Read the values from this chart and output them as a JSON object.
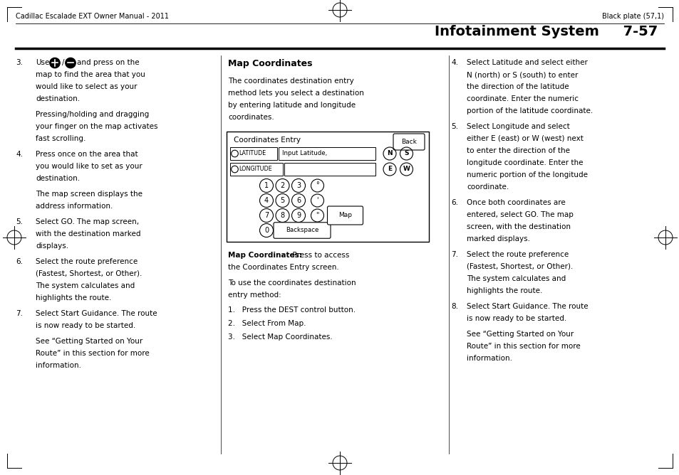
{
  "page_width": 9.54,
  "page_height": 6.68,
  "bg_color": "#ffffff",
  "header_left": "Cadillac Escalade EXT Owner Manual - 2011",
  "header_right": "Black plate (57,1)",
  "section_title": "Infotainment System",
  "section_num": "7-57",
  "left_col": [
    {
      "type": "numbered",
      "num": "3.",
      "lines": [
        "Use  /  and press on the",
        "map to find the area that you",
        "would like to select as your",
        "destination."
      ]
    },
    {
      "type": "indent",
      "lines": [
        "Pressing/holding and dragging",
        "your finger on the map activates",
        "fast scrolling."
      ]
    },
    {
      "type": "numbered",
      "num": "4.",
      "lines": [
        "Press once on the area that",
        "you would like to set as your",
        "destination."
      ]
    },
    {
      "type": "indent",
      "lines": [
        "The map screen displays the",
        "address information."
      ]
    },
    {
      "type": "numbered",
      "num": "5.",
      "lines": [
        "Select GO. The map screen,",
        "with the destination marked",
        "displays."
      ]
    },
    {
      "type": "numbered",
      "num": "6.",
      "lines": [
        "Select the route preference",
        "(Fastest, Shortest, or Other).",
        "The system calculates and",
        "highlights the route."
      ]
    },
    {
      "type": "numbered",
      "num": "7.",
      "lines": [
        "Select Start Guidance. The route",
        "is now ready to be started."
      ]
    },
    {
      "type": "indent",
      "lines": [
        "See “Getting Started on Your",
        "Route” in this section for more",
        "information."
      ]
    }
  ],
  "mid_col_title": "Map Coordinates",
  "mid_col_body": [
    "The coordinates destination entry",
    "method lets you select a destination",
    "by entering latitude and longitude",
    "coordinates."
  ],
  "mid_col_caption_bold": "Map Coordinates:",
  "mid_col_caption": "  Press to access\nthe Coordinates Entry screen.",
  "mid_col_steps": [
    "1.   Press the DEST control button.",
    "2.   Select From Map.",
    "3.   Select Map Coordinates."
  ],
  "right_col": [
    {
      "type": "numbered",
      "num": "4.",
      "lines": [
        "Select Latitude and select either",
        "N (north) or S (south) to enter",
        "the direction of the latitude",
        "coordinate. Enter the numeric",
        "portion of the latitude coordinate."
      ]
    },
    {
      "type": "numbered",
      "num": "5.",
      "lines": [
        "Select Longitude and select",
        "either E (east) or W (west) next",
        "to enter the direction of the",
        "longitude coordinate. Enter the",
        "numeric portion of the longitude",
        "coordinate."
      ]
    },
    {
      "type": "numbered",
      "num": "6.",
      "lines": [
        "Once both coordinates are",
        "entered, select GO. The map",
        "screen, with the destination",
        "marked displays."
      ]
    },
    {
      "type": "numbered",
      "num": "7.",
      "lines": [
        "Select the route preference",
        "(Fastest, Shortest, or Other).",
        "The system calculates and",
        "highlights the route."
      ]
    },
    {
      "type": "numbered",
      "num": "8.",
      "lines": [
        "Select Start Guidance. The route",
        "is now ready to be started."
      ]
    },
    {
      "type": "indent",
      "lines": [
        "See “Getting Started on Your",
        "Route” in this section for more",
        "information."
      ]
    }
  ]
}
